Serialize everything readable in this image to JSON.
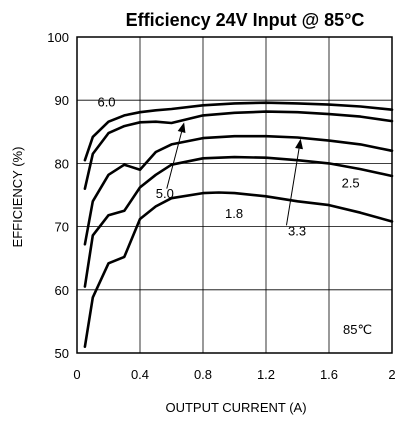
{
  "chart_data": {
    "type": "line",
    "title": "Efficiency 24V Input @ 85°C",
    "xlabel": "OUTPUT CURRENT (A)",
    "ylabel": "EFFICIENCY (%)",
    "xlim": [
      0,
      2
    ],
    "ylim": [
      50,
      100
    ],
    "xticks": [
      0,
      0.4,
      0.8,
      1.2,
      1.6,
      2
    ],
    "xtick_labels": [
      "0",
      "0.4",
      "0.8",
      "1.2",
      "1.6",
      "2"
    ],
    "yticks": [
      50,
      60,
      70,
      80,
      90,
      100
    ],
    "ytick_labels": [
      "50",
      "60",
      "70",
      "80",
      "90",
      "100"
    ],
    "grid": true,
    "annotation": "85℃",
    "series": [
      {
        "name": "6.0",
        "x": [
          0.05,
          0.1,
          0.2,
          0.3,
          0.4,
          0.5,
          0.6,
          0.8,
          1.0,
          1.2,
          1.4,
          1.6,
          1.8,
          2.0
        ],
        "y": [
          80.5,
          84.2,
          86.6,
          87.6,
          88.1,
          88.4,
          88.6,
          89.2,
          89.5,
          89.6,
          89.5,
          89.3,
          89.0,
          88.5
        ]
      },
      {
        "name": "5.0",
        "x": [
          0.05,
          0.1,
          0.2,
          0.3,
          0.4,
          0.5,
          0.6,
          0.8,
          1.0,
          1.2,
          1.4,
          1.6,
          1.8,
          2.0
        ],
        "y": [
          76.0,
          81.5,
          84.8,
          85.9,
          86.5,
          86.6,
          86.4,
          87.6,
          88.0,
          88.2,
          88.1,
          87.8,
          87.4,
          86.7
        ]
      },
      {
        "name": "3.3",
        "x": [
          0.05,
          0.1,
          0.2,
          0.3,
          0.4,
          0.5,
          0.6,
          0.8,
          1.0,
          1.2,
          1.4,
          1.6,
          1.8,
          2.0
        ],
        "y": [
          67.2,
          74.0,
          78.2,
          79.8,
          79.0,
          81.8,
          83.0,
          84.0,
          84.3,
          84.3,
          84.1,
          83.6,
          83.0,
          82.0
        ]
      },
      {
        "name": "2.5",
        "x": [
          0.05,
          0.1,
          0.2,
          0.3,
          0.4,
          0.5,
          0.6,
          0.8,
          1.0,
          1.2,
          1.4,
          1.6,
          1.8,
          2.0
        ],
        "y": [
          60.5,
          68.6,
          71.8,
          72.5,
          76.2,
          78.2,
          79.8,
          80.8,
          81.0,
          80.9,
          80.5,
          80.0,
          79.1,
          78.0
        ]
      },
      {
        "name": "1.8",
        "x": [
          0.05,
          0.1,
          0.2,
          0.3,
          0.4,
          0.5,
          0.6,
          0.8,
          0.9,
          1.0,
          1.2,
          1.4,
          1.6,
          1.8,
          2.0
        ],
        "y": [
          51.0,
          58.8,
          64.2,
          65.2,
          71.2,
          73.2,
          74.5,
          75.3,
          75.4,
          75.3,
          74.8,
          74.0,
          73.4,
          72.2,
          70.8
        ]
      }
    ],
    "labels": [
      {
        "text": "6.0",
        "x": 0.13,
        "y": 89.0
      },
      {
        "text": "5.0",
        "x": 0.5,
        "y": 74.5
      },
      {
        "text": "3.3",
        "x": 1.34,
        "y": 68.6
      },
      {
        "text": "2.5",
        "x": 1.68,
        "y": 76.2
      },
      {
        "text": "1.8",
        "x": 0.94,
        "y": 71.4
      }
    ],
    "arrows": [
      {
        "from": [
          0.57,
          76.0
        ],
        "to": [
          0.68,
          86.5
        ]
      },
      {
        "from": [
          1.33,
          70.2
        ],
        "to": [
          1.42,
          83.9
        ]
      }
    ]
  }
}
